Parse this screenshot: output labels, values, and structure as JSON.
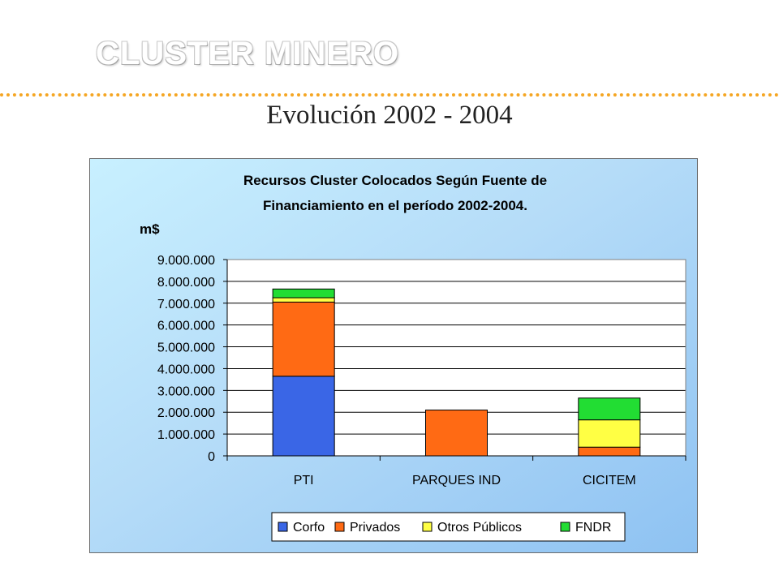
{
  "slide": {
    "header_title": "CLUSTER MINERO",
    "subtitle": "Evolución 2002 - 2004"
  },
  "colors": {
    "accent_dots": "#f5a623",
    "Corfo": "#3a66e6",
    "Privados": "#ff6a14",
    "Otros Públicos": "#ffff44",
    "FNDR": "#22dd33"
  },
  "chart_data": {
    "type": "bar",
    "stacked": true,
    "title_line1": "Recursos Cluster Colocados Según Fuente de",
    "title_line2": "Financiamiento en el período  2002-2004.",
    "ylabel": "m$",
    "xlabel": "",
    "ylim": [
      0,
      9000000
    ],
    "yticks": [
      "0",
      "1.000.000",
      "2.000.000",
      "3.000.000",
      "4.000.000",
      "5.000.000",
      "6.000.000",
      "7.000.000",
      "8.000.000",
      "9.000.000"
    ],
    "categories": [
      "PTI",
      "PARQUES IND",
      "CICITEM"
    ],
    "series": [
      {
        "name": "Corfo",
        "values": [
          3650000,
          0,
          0
        ]
      },
      {
        "name": "Privados",
        "values": [
          3400000,
          2100000,
          400000
        ]
      },
      {
        "name": "Otros Públicos",
        "values": [
          200000,
          0,
          1250000
        ]
      },
      {
        "name": "FNDR",
        "values": [
          400000,
          0,
          1000000
        ]
      }
    ],
    "grid": true,
    "legend_position": "bottom"
  }
}
